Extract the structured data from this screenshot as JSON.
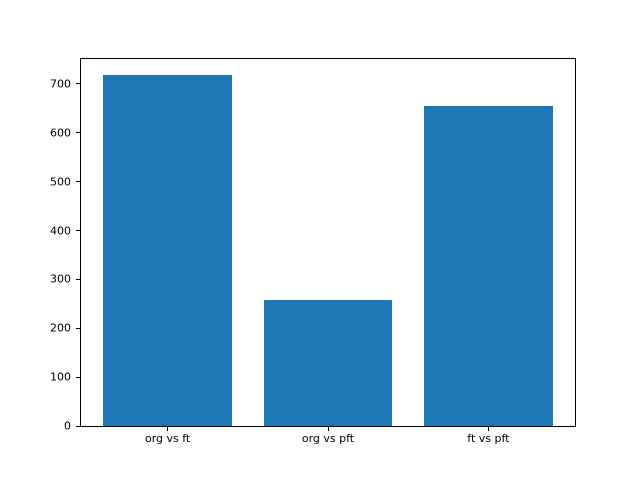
{
  "chart_data": {
    "type": "bar",
    "categories": [
      "org vs ft",
      "org vs pft",
      "ft vs pft"
    ],
    "values": [
      718,
      257,
      655
    ],
    "title": "",
    "xlabel": "",
    "ylabel": "",
    "ylim": [
      0,
      751
    ],
    "yticks": [
      0,
      100,
      200,
      300,
      400,
      500,
      600,
      700
    ],
    "bar_color": "#1f77b4",
    "bar_width_fraction": 0.8,
    "grid": false,
    "legend": "none",
    "background_color": "#ffffff",
    "axis_color": "#000000",
    "text_color": "#000000"
  }
}
